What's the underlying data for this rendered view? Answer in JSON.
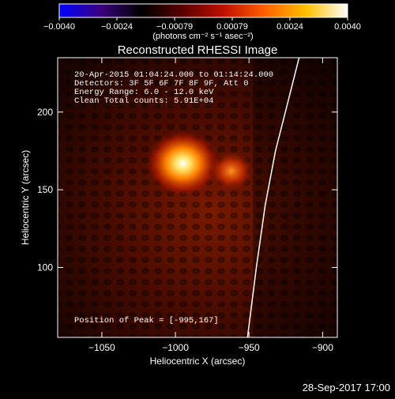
{
  "colorbar": {
    "ticks": [
      "−0.0040",
      "−0.0024",
      "−0.00079",
      "0.00079",
      "0.0024",
      "0.0040"
    ],
    "unit_label": "(photons cm⁻² s⁻¹ asec⁻²)",
    "colors": [
      "#0000ff",
      "#3a0080",
      "#000000",
      "#5a0000",
      "#c01000",
      "#ff6000",
      "#ffc000",
      "#ffffff"
    ]
  },
  "chart_data": {
    "type": "heatmap",
    "title": "Reconstructed RHESSI Image",
    "xlabel": "Heliocentric X (arcsec)",
    "ylabel": "Heliocentric Y (arcsec)",
    "xlim": [
      -1080,
      -890
    ],
    "ylim": [
      55,
      235
    ],
    "x_ticks": [
      -1050,
      -1000,
      -950,
      -900
    ],
    "x_tick_labels": [
      "−1050",
      "−1000",
      "−950",
      "−900"
    ],
    "y_ticks": [
      100,
      150,
      200
    ],
    "y_tick_labels": [
      "100",
      "150",
      "200"
    ],
    "sources": [
      {
        "x": -995,
        "y": 167,
        "intensity": 1.0
      },
      {
        "x": -962,
        "y": 162,
        "intensity": 0.55
      }
    ],
    "limb_curve": [
      {
        "x": -951,
        "y": 55
      },
      {
        "x": -945,
        "y": 100
      },
      {
        "x": -939,
        "y": 140
      },
      {
        "x": -932,
        "y": 175
      },
      {
        "x": -924,
        "y": 205
      },
      {
        "x": -916,
        "y": 235
      }
    ],
    "info_lines": [
      "20-Apr-2015 01:04:24.000 to 01:14:24.000",
      "Detectors: 3F 5F 6F 7F 8F 9F, Att 0",
      "Energy Range: 6.0 - 12.0 keV",
      "Clean    Total counts: 5.91E+04"
    ],
    "peak_text": "Position of Peak = [-995,167]"
  },
  "footer": {
    "timestamp": "28-Sep-2017 17:00"
  }
}
